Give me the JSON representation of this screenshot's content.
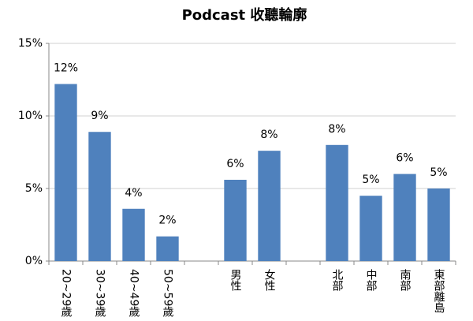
{
  "chart_data": {
    "type": "bar",
    "title": "Podcast 收聽輪廓",
    "categories": [
      "20~29歲",
      "30~39歲",
      "40~49歲",
      "50~59歲",
      null,
      "男性",
      "女性",
      null,
      "北部",
      "中部",
      "南部",
      "東部離島"
    ],
    "values": [
      12.2,
      8.9,
      3.6,
      1.7,
      null,
      5.6,
      7.6,
      null,
      8.0,
      4.5,
      6.0,
      5.0
    ],
    "value_labels": [
      "12%",
      "9%",
      "4%",
      "2%",
      null,
      "6%",
      "8%",
      null,
      "8%",
      "5%",
      "6%",
      "5%"
    ],
    "color": "#4f81bd",
    "ylim": [
      0,
      15
    ],
    "yticks": [
      {
        "value": 0,
        "label": "0%"
      },
      {
        "value": 5,
        "label": "5%"
      },
      {
        "value": 10,
        "label": "10%"
      },
      {
        "value": 15,
        "label": "15%"
      }
    ],
    "grid": true
  }
}
